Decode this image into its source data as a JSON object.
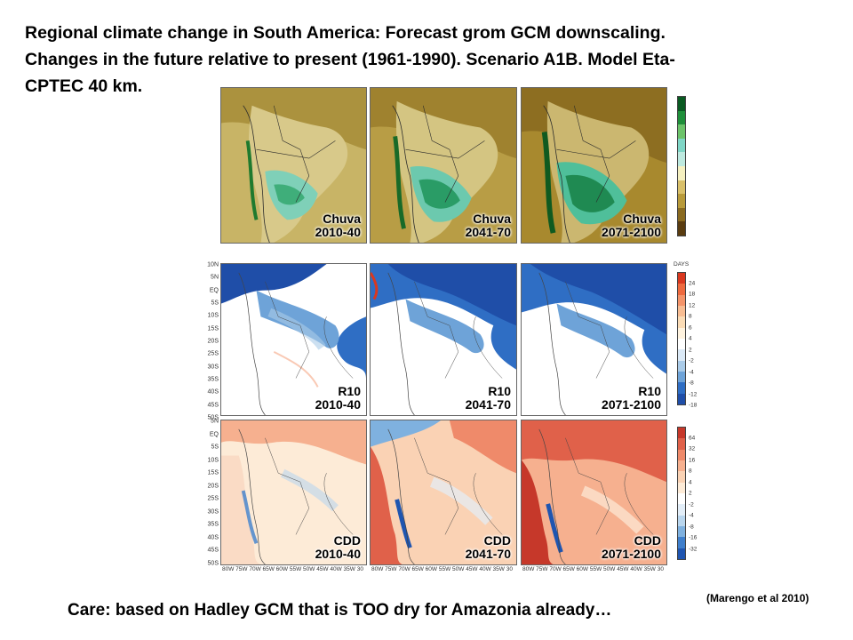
{
  "title": {
    "line1": "Regional climate change in South America: Forecast grom GCM downscaling.",
    "line2": "Changes in the future relative to present (1961-1990).  Scenario A1B. Model Eta-",
    "line3": "CPTEC 40 km."
  },
  "rows": [
    {
      "variable": "Chuva",
      "panels": [
        {
          "label_top": "Chuva",
          "label_bottom": "2010-40"
        },
        {
          "label_top": "Chuva",
          "label_bottom": "2041-70"
        },
        {
          "label_top": "Chuva",
          "label_bottom": "2071-2100"
        }
      ],
      "colorbar": {
        "colors": [
          "#0a5a22",
          "#1f8f3a",
          "#6cc36a",
          "#7fd6c6",
          "#bde9df",
          "#f5f0c0",
          "#d9c06a",
          "#b89a3a",
          "#8a6a20",
          "#5a3c10"
        ],
        "ticks": []
      }
    },
    {
      "variable": "R10",
      "panels": [
        {
          "label_top": "R10",
          "label_bottom": "2010-40"
        },
        {
          "label_top": "R10",
          "label_bottom": "2041-70"
        },
        {
          "label_top": "R10",
          "label_bottom": "2071-2100"
        }
      ],
      "y_labels": [
        "10N",
        "5N",
        "EQ",
        "5S",
        "10S",
        "15S",
        "20S",
        "25S",
        "30S",
        "35S",
        "40S",
        "45S",
        "50S"
      ],
      "colorbar": {
        "unit": "DAYS",
        "colors": [
          "#d9381f",
          "#ee6a3f",
          "#f4946a",
          "#f8bd93",
          "#fbdcb6",
          "#fff3df",
          "#ffffff",
          "#dbe9f6",
          "#aacbe8",
          "#6ea3d8",
          "#2f6ec4",
          "#1f4ea8"
        ],
        "ticks": [
          "24",
          "18",
          "12",
          "8",
          "6",
          "4",
          "2",
          "-2",
          "-4",
          "-8",
          "-12",
          "-18"
        ]
      }
    },
    {
      "variable": "CDD",
      "panels": [
        {
          "label_top": "CDD",
          "label_bottom": "2010-40"
        },
        {
          "label_top": "CDD",
          "label_bottom": "2041-70"
        },
        {
          "label_top": "CDD",
          "label_bottom": "2071-2100"
        }
      ],
      "y_labels": [
        "5N",
        "EQ",
        "5S",
        "10S",
        "15S",
        "20S",
        "25S",
        "30S",
        "35S",
        "40S",
        "45S",
        "50S"
      ],
      "x_labels": "80W 75W 70W 65W 60W 55W 50W 45W 40W 35W 30",
      "colorbar": {
        "colors": [
          "#c6382a",
          "#e0614a",
          "#ef8a6a",
          "#f6b08f",
          "#fad2b4",
          "#fdebd7",
          "#ffffff",
          "#e3eef8",
          "#b9d6ee",
          "#7fb1df",
          "#3f7fcc",
          "#1f55b0"
        ],
        "ticks": [
          "64",
          "32",
          "16",
          "8",
          "4",
          "2",
          "-2",
          "-4",
          "-8",
          "-16",
          "-32"
        ]
      }
    }
  ],
  "footer": "Care: based on Hadley GCM that is TOO dry for Amazonia already…",
  "citation": "(Marengo et al 2010)"
}
